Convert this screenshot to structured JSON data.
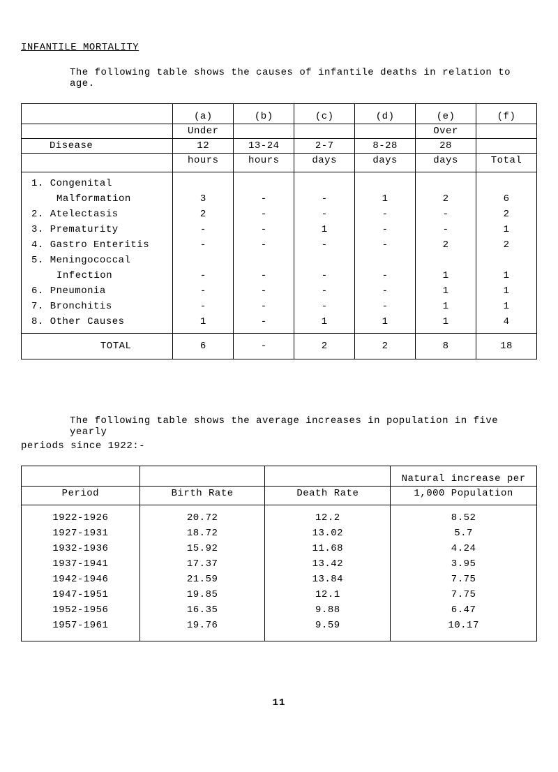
{
  "title": "INFANTILE MORTALITY",
  "intro1": "The following table shows the causes of infantile deaths in relation to age.",
  "table1": {
    "header": {
      "disease": "Disease",
      "col_a": [
        "(a)",
        "Under",
        "12",
        "hours"
      ],
      "col_b": [
        "(b)",
        "",
        "13-24",
        "hours"
      ],
      "col_c": [
        "(c)",
        "",
        "2-7",
        "days"
      ],
      "col_d": [
        "(d)",
        "",
        "8-28",
        "days"
      ],
      "col_e": [
        "(e)",
        "Over",
        "28",
        "days"
      ],
      "col_f": [
        "(f)",
        "",
        "",
        "Total"
      ]
    },
    "rows": [
      {
        "label": "1.  Congenital",
        "indent": false,
        "a": "",
        "b": "",
        "c": "",
        "d": "",
        "e": "",
        "f": ""
      },
      {
        "label": "Malformation",
        "indent": true,
        "a": "3",
        "b": "-",
        "c": "-",
        "d": "1",
        "e": "2",
        "f": "6"
      },
      {
        "label": "2.  Atelectasis",
        "indent": false,
        "a": "2",
        "b": "-",
        "c": "-",
        "d": "-",
        "e": "-",
        "f": "2"
      },
      {
        "label": "3.  Prematurity",
        "indent": false,
        "a": "-",
        "b": "-",
        "c": "1",
        "d": "-",
        "e": "-",
        "f": "1"
      },
      {
        "label": "4.  Gastro Enteritis",
        "indent": false,
        "a": "-",
        "b": "-",
        "c": "-",
        "d": "-",
        "e": "2",
        "f": "2"
      },
      {
        "label": "5.  Meningococcal",
        "indent": false,
        "a": "",
        "b": "",
        "c": "",
        "d": "",
        "e": "",
        "f": ""
      },
      {
        "label": "Infection",
        "indent": true,
        "a": "-",
        "b": "-",
        "c": "-",
        "d": "-",
        "e": "1",
        "f": "1"
      },
      {
        "label": "6.  Pneumonia",
        "indent": false,
        "a": "-",
        "b": "-",
        "c": "-",
        "d": "-",
        "e": "1",
        "f": "1"
      },
      {
        "label": "7.  Bronchitis",
        "indent": false,
        "a": "-",
        "b": "-",
        "c": "-",
        "d": "-",
        "e": "1",
        "f": "1"
      },
      {
        "label": "8.  Other Causes",
        "indent": false,
        "a": "1",
        "b": "-",
        "c": "1",
        "d": "1",
        "e": "1",
        "f": "4"
      }
    ],
    "total": {
      "label": "TOTAL",
      "a": "6",
      "b": "-",
      "c": "2",
      "d": "2",
      "e": "8",
      "f": "18"
    }
  },
  "intro2_line1": "The following table shows the average increases in population in five yearly",
  "intro2_line2": "periods since 1922:-",
  "table2": {
    "header": {
      "period": "Period",
      "birth": "Birth Rate",
      "death": "Death Rate",
      "natural_line1": "Natural increase per",
      "natural_line2": "1,000 Population"
    },
    "rows": [
      {
        "period": "1922-1926",
        "birth": "20.72",
        "death": "12.2",
        "natural": "8.52"
      },
      {
        "period": "1927-1931",
        "birth": "18.72",
        "death": "13.02",
        "natural": "5.7"
      },
      {
        "period": "1932-1936",
        "birth": "15.92",
        "death": "11.68",
        "natural": "4.24"
      },
      {
        "period": "1937-1941",
        "birth": "17.37",
        "death": "13.42",
        "natural": "3.95"
      },
      {
        "period": "1942-1946",
        "birth": "21.59",
        "death": "13.84",
        "natural": "7.75"
      },
      {
        "period": "1947-1951",
        "birth": "19.85",
        "death": "12.1",
        "natural": "7.75"
      },
      {
        "period": "1952-1956",
        "birth": "16.35",
        "death": "9.88",
        "natural": "6.47"
      },
      {
        "period": "1957-1961",
        "birth": "19.76",
        "death": "9.59",
        "natural": "10.17"
      }
    ]
  },
  "page_number": "11"
}
